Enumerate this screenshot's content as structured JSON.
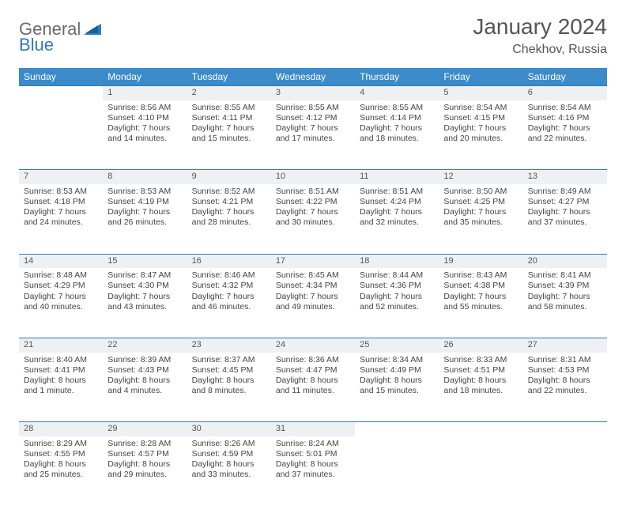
{
  "brand": {
    "part1": "General",
    "part2": "Blue"
  },
  "title": "January 2024",
  "subtitle": "Chekhov, Russia",
  "colors": {
    "header_bg": "#3b8bca",
    "header_text": "#ffffff",
    "rule": "#2f7abf",
    "daynum_bg": "#eef1f3",
    "body_text": "#444444",
    "title_text": "#555555",
    "logo_gray": "#6a6a6a",
    "logo_blue": "#2f7abf",
    "page_bg": "#ffffff"
  },
  "typography": {
    "title_fontsize": 28,
    "subtitle_fontsize": 16,
    "header_fontsize": 12,
    "cell_fontsize": 10.5
  },
  "dayHeaders": [
    "Sunday",
    "Monday",
    "Tuesday",
    "Wednesday",
    "Thursday",
    "Friday",
    "Saturday"
  ],
  "weeks": [
    {
      "nums": [
        "",
        "1",
        "2",
        "3",
        "4",
        "5",
        "6"
      ],
      "cells": [
        [],
        [
          "Sunrise: 8:56 AM",
          "Sunset: 4:10 PM",
          "Daylight: 7 hours",
          "and 14 minutes."
        ],
        [
          "Sunrise: 8:55 AM",
          "Sunset: 4:11 PM",
          "Daylight: 7 hours",
          "and 15 minutes."
        ],
        [
          "Sunrise: 8:55 AM",
          "Sunset: 4:12 PM",
          "Daylight: 7 hours",
          "and 17 minutes."
        ],
        [
          "Sunrise: 8:55 AM",
          "Sunset: 4:14 PM",
          "Daylight: 7 hours",
          "and 18 minutes."
        ],
        [
          "Sunrise: 8:54 AM",
          "Sunset: 4:15 PM",
          "Daylight: 7 hours",
          "and 20 minutes."
        ],
        [
          "Sunrise: 8:54 AM",
          "Sunset: 4:16 PM",
          "Daylight: 7 hours",
          "and 22 minutes."
        ]
      ]
    },
    {
      "nums": [
        "7",
        "8",
        "9",
        "10",
        "11",
        "12",
        "13"
      ],
      "cells": [
        [
          "Sunrise: 8:53 AM",
          "Sunset: 4:18 PM",
          "Daylight: 7 hours",
          "and 24 minutes."
        ],
        [
          "Sunrise: 8:53 AM",
          "Sunset: 4:19 PM",
          "Daylight: 7 hours",
          "and 26 minutes."
        ],
        [
          "Sunrise: 8:52 AM",
          "Sunset: 4:21 PM",
          "Daylight: 7 hours",
          "and 28 minutes."
        ],
        [
          "Sunrise: 8:51 AM",
          "Sunset: 4:22 PM",
          "Daylight: 7 hours",
          "and 30 minutes."
        ],
        [
          "Sunrise: 8:51 AM",
          "Sunset: 4:24 PM",
          "Daylight: 7 hours",
          "and 32 minutes."
        ],
        [
          "Sunrise: 8:50 AM",
          "Sunset: 4:25 PM",
          "Daylight: 7 hours",
          "and 35 minutes."
        ],
        [
          "Sunrise: 8:49 AM",
          "Sunset: 4:27 PM",
          "Daylight: 7 hours",
          "and 37 minutes."
        ]
      ]
    },
    {
      "nums": [
        "14",
        "15",
        "16",
        "17",
        "18",
        "19",
        "20"
      ],
      "cells": [
        [
          "Sunrise: 8:48 AM",
          "Sunset: 4:29 PM",
          "Daylight: 7 hours",
          "and 40 minutes."
        ],
        [
          "Sunrise: 8:47 AM",
          "Sunset: 4:30 PM",
          "Daylight: 7 hours",
          "and 43 minutes."
        ],
        [
          "Sunrise: 8:46 AM",
          "Sunset: 4:32 PM",
          "Daylight: 7 hours",
          "and 46 minutes."
        ],
        [
          "Sunrise: 8:45 AM",
          "Sunset: 4:34 PM",
          "Daylight: 7 hours",
          "and 49 minutes."
        ],
        [
          "Sunrise: 8:44 AM",
          "Sunset: 4:36 PM",
          "Daylight: 7 hours",
          "and 52 minutes."
        ],
        [
          "Sunrise: 8:43 AM",
          "Sunset: 4:38 PM",
          "Daylight: 7 hours",
          "and 55 minutes."
        ],
        [
          "Sunrise: 8:41 AM",
          "Sunset: 4:39 PM",
          "Daylight: 7 hours",
          "and 58 minutes."
        ]
      ]
    },
    {
      "nums": [
        "21",
        "22",
        "23",
        "24",
        "25",
        "26",
        "27"
      ],
      "cells": [
        [
          "Sunrise: 8:40 AM",
          "Sunset: 4:41 PM",
          "Daylight: 8 hours",
          "and 1 minute."
        ],
        [
          "Sunrise: 8:39 AM",
          "Sunset: 4:43 PM",
          "Daylight: 8 hours",
          "and 4 minutes."
        ],
        [
          "Sunrise: 8:37 AM",
          "Sunset: 4:45 PM",
          "Daylight: 8 hours",
          "and 8 minutes."
        ],
        [
          "Sunrise: 8:36 AM",
          "Sunset: 4:47 PM",
          "Daylight: 8 hours",
          "and 11 minutes."
        ],
        [
          "Sunrise: 8:34 AM",
          "Sunset: 4:49 PM",
          "Daylight: 8 hours",
          "and 15 minutes."
        ],
        [
          "Sunrise: 8:33 AM",
          "Sunset: 4:51 PM",
          "Daylight: 8 hours",
          "and 18 minutes."
        ],
        [
          "Sunrise: 8:31 AM",
          "Sunset: 4:53 PM",
          "Daylight: 8 hours",
          "and 22 minutes."
        ]
      ]
    },
    {
      "nums": [
        "28",
        "29",
        "30",
        "31",
        "",
        "",
        ""
      ],
      "cells": [
        [
          "Sunrise: 8:29 AM",
          "Sunset: 4:55 PM",
          "Daylight: 8 hours",
          "and 25 minutes."
        ],
        [
          "Sunrise: 8:28 AM",
          "Sunset: 4:57 PM",
          "Daylight: 8 hours",
          "and 29 minutes."
        ],
        [
          "Sunrise: 8:26 AM",
          "Sunset: 4:59 PM",
          "Daylight: 8 hours",
          "and 33 minutes."
        ],
        [
          "Sunrise: 8:24 AM",
          "Sunset: 5:01 PM",
          "Daylight: 8 hours",
          "and 37 minutes."
        ],
        [],
        [],
        []
      ]
    }
  ]
}
